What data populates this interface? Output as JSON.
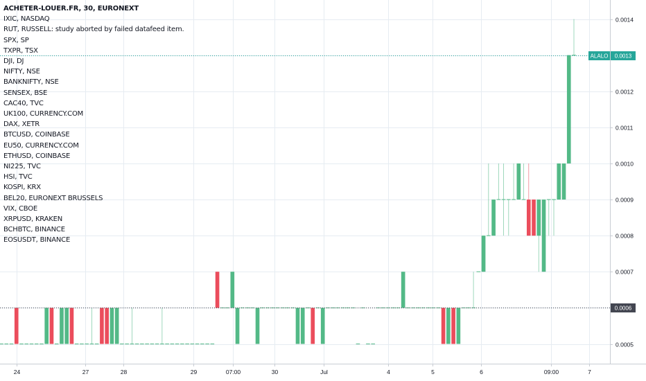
{
  "header": {
    "title": "ACHETER-LOUER.FR, 30, EURONEXT"
  },
  "comparison_symbols": [
    "IXIC, NASDAQ",
    "RUT, RUSSELL: study aborted by failed datafeed item.",
    "SPX, SP",
    "TXPR, TSX",
    "DJI, DJ",
    "NIFTY, NSE",
    "BANKNIFTY, NSE",
    "SENSEX, BSE",
    "CAC40, TVC",
    "UK100, CURRENCY.COM",
    "DAX, XETR",
    "BTCUSD, COINBASE",
    "EU50, CURRENCY.COM",
    "ETHUSD, COINBASE",
    "NI225, TVC",
    "HSI, TVC",
    "KOSPI, KRX",
    "BEL20, EURONEXT BRUSSELS",
    "VIX, CBOE",
    "XRPUSD, KRAKEN",
    "BCHBTC, BINANCE",
    "EOSUSDT, BINANCE"
  ],
  "price_badges": {
    "last": {
      "label": "ALALO",
      "value": "0.0013",
      "color": "#26a69a"
    },
    "marker": {
      "value": "0.0006",
      "color": "#434651"
    }
  },
  "colors": {
    "up": "#53b987",
    "down": "#eb4d5c",
    "grid": "#e6ecf2",
    "axis_text": "#131722"
  },
  "chart_data": {
    "type": "candlestick",
    "title": "ACHETER-LOUER.FR, 30, EURONEXT",
    "ylim": [
      0.00045,
      0.00145
    ],
    "y_ticks": [
      0.0005,
      0.0006,
      0.0007,
      0.0008,
      0.0009,
      0.001,
      0.0011,
      0.0012,
      0.0013,
      0.0014
    ],
    "y_tick_labels": [
      "0.0005",
      "0.0006",
      "0.0007",
      "0.0008",
      "0.0009",
      "0.0010",
      "0.0011",
      "0.0012",
      "0.0013",
      "0.0014"
    ],
    "x_ticks": [
      "24",
      "27",
      "28",
      "29",
      "07:00",
      "30",
      "Jul",
      "4",
      "5",
      "6",
      "09:00",
      "7"
    ],
    "reference_line": 0.0006,
    "last_price_line": 0.0013,
    "bar_interval": "30",
    "candles": [
      {
        "o": 0.0005,
        "h": 0.0005,
        "l": 0.0005,
        "c": 0.0005
      },
      {
        "o": 0.0005,
        "h": 0.0005,
        "l": 0.0005,
        "c": 0.0005
      },
      {
        "o": 0.0005,
        "h": 0.0005,
        "l": 0.0005,
        "c": 0.0005
      },
      {
        "o": 0.0006,
        "h": 0.0006,
        "l": 0.0005,
        "c": 0.0005
      },
      {
        "o": 0.0005,
        "h": 0.0005,
        "l": 0.0005,
        "c": 0.0005
      },
      {
        "o": 0.0005,
        "h": 0.0005,
        "l": 0.0005,
        "c": 0.0005
      },
      {
        "o": 0.0005,
        "h": 0.0005,
        "l": 0.0005,
        "c": 0.0005
      },
      {
        "o": 0.0005,
        "h": 0.0005,
        "l": 0.0005,
        "c": 0.0005
      },
      {
        "o": 0.0005,
        "h": 0.0005,
        "l": 0.0005,
        "c": 0.0005
      },
      {
        "o": 0.0005,
        "h": 0.0006,
        "l": 0.0005,
        "c": 0.0006
      },
      {
        "o": 0.0006,
        "h": 0.0006,
        "l": 0.0005,
        "c": 0.0005
      },
      {
        "o": 0.0005,
        "h": 0.0005,
        "l": 0.0005,
        "c": 0.0005
      },
      {
        "o": 0.0005,
        "h": 0.0006,
        "l": 0.0005,
        "c": 0.0006
      },
      {
        "o": 0.0005,
        "h": 0.0006,
        "l": 0.0005,
        "c": 0.0006
      },
      {
        "o": 0.0006,
        "h": 0.0006,
        "l": 0.0005,
        "c": 0.0005
      },
      {
        "o": 0.0005,
        "h": 0.0005,
        "l": 0.0005,
        "c": 0.0005
      },
      {
        "o": 0.0005,
        "h": 0.0005,
        "l": 0.0005,
        "c": 0.0005
      },
      {
        "o": 0.0005,
        "h": 0.0005,
        "l": 0.0005,
        "c": 0.0005
      },
      {
        "o": 0.0005,
        "h": 0.0006,
        "l": 0.0005,
        "c": 0.0005
      },
      {
        "o": 0.0005,
        "h": 0.0005,
        "l": 0.0005,
        "c": 0.0005
      },
      {
        "o": 0.0006,
        "h": 0.0006,
        "l": 0.0005,
        "c": 0.0005
      },
      {
        "o": 0.0006,
        "h": 0.0006,
        "l": 0.0005,
        "c": 0.0005
      },
      {
        "o": 0.0005,
        "h": 0.0006,
        "l": 0.0005,
        "c": 0.0006
      },
      {
        "o": 0.0005,
        "h": 0.0006,
        "l": 0.0005,
        "c": 0.0006
      },
      {
        "o": 0.0005,
        "h": 0.0005,
        "l": 0.0005,
        "c": 0.0005
      },
      {
        "o": 0.0005,
        "h": 0.0005,
        "l": 0.0005,
        "c": 0.0005
      },
      {
        "o": 0.0005,
        "h": 0.0006,
        "l": 0.0005,
        "c": 0.0005
      },
      {
        "o": 0.0005,
        "h": 0.0005,
        "l": 0.0005,
        "c": 0.0005
      },
      {
        "o": 0.0005,
        "h": 0.0005,
        "l": 0.0005,
        "c": 0.0005
      },
      {
        "o": 0.0005,
        "h": 0.0005,
        "l": 0.0005,
        "c": 0.0005
      },
      {
        "o": 0.0005,
        "h": 0.0005,
        "l": 0.0005,
        "c": 0.0005
      },
      {
        "o": 0.0005,
        "h": 0.0005,
        "l": 0.0005,
        "c": 0.0005
      },
      {
        "o": 0.0005,
        "h": 0.0006,
        "l": 0.0005,
        "c": 0.0005
      },
      {
        "o": 0.0005,
        "h": 0.0005,
        "l": 0.0005,
        "c": 0.0005
      },
      {
        "o": 0.0005,
        "h": 0.0005,
        "l": 0.0005,
        "c": 0.0005
      },
      {
        "o": 0.0005,
        "h": 0.0005,
        "l": 0.0005,
        "c": 0.0005
      },
      {
        "o": 0.0005,
        "h": 0.0005,
        "l": 0.0005,
        "c": 0.0005
      },
      {
        "o": 0.0005,
        "h": 0.0005,
        "l": 0.0005,
        "c": 0.0005
      },
      {
        "o": 0.0005,
        "h": 0.0005,
        "l": 0.0005,
        "c": 0.0005
      },
      {
        "o": 0.0005,
        "h": 0.0005,
        "l": 0.0005,
        "c": 0.0005
      },
      {
        "o": 0.0005,
        "h": 0.0005,
        "l": 0.0005,
        "c": 0.0005
      },
      {
        "o": 0.0005,
        "h": 0.0005,
        "l": 0.0005,
        "c": 0.0005
      },
      {
        "o": 0.0005,
        "h": 0.0005,
        "l": 0.0005,
        "c": 0.0005
      },
      {
        "o": 0.0007,
        "h": 0.0007,
        "l": 0.0006,
        "c": 0.0006
      },
      {
        "o": 0.0006,
        "h": 0.0006,
        "l": 0.0006,
        "c": 0.0006
      },
      {
        "o": 0.0006,
        "h": 0.0006,
        "l": 0.0006,
        "c": 0.0006
      },
      {
        "o": 0.0006,
        "h": 0.0007,
        "l": 0.0006,
        "c": 0.0007
      },
      {
        "o": 0.0005,
        "h": 0.0006,
        "l": 0.0005,
        "c": 0.0006
      },
      {
        "o": 0.0006,
        "h": 0.0006,
        "l": 0.0006,
        "c": 0.0006
      },
      {
        "o": 0.0006,
        "h": 0.0006,
        "l": 0.0006,
        "c": 0.0006
      },
      {
        "o": 0.0006,
        "h": 0.0006,
        "l": 0.0006,
        "c": 0.0006
      },
      {
        "o": 0.0005,
        "h": 0.0006,
        "l": 0.0005,
        "c": 0.0006
      },
      {
        "o": 0.0006,
        "h": 0.0006,
        "l": 0.0006,
        "c": 0.0006
      },
      {
        "o": 0.0006,
        "h": 0.0006,
        "l": 0.0006,
        "c": 0.0006
      },
      {
        "o": 0.0006,
        "h": 0.0006,
        "l": 0.0006,
        "c": 0.0006
      },
      {
        "o": 0.0006,
        "h": 0.0006,
        "l": 0.0006,
        "c": 0.0006
      },
      {
        "o": 0.0006,
        "h": 0.0006,
        "l": 0.0006,
        "c": 0.0006
      },
      {
        "o": 0.0006,
        "h": 0.0006,
        "l": 0.0006,
        "c": 0.0006
      },
      {
        "o": 0.0006,
        "h": 0.0006,
        "l": 0.0006,
        "c": 0.0006
      },
      {
        "o": 0.0005,
        "h": 0.0006,
        "l": 0.0005,
        "c": 0.0006
      },
      {
        "o": 0.0005,
        "h": 0.0006,
        "l": 0.0005,
        "c": 0.0006
      },
      {
        "o": 0.0006,
        "h": 0.0006,
        "l": 0.0006,
        "c": 0.0006
      },
      {
        "o": 0.0006,
        "h": 0.0006,
        "l": 0.0005,
        "c": 0.0005
      },
      {
        "o": 0.0006,
        "h": 0.0006,
        "l": 0.0006,
        "c": 0.0006
      },
      {
        "o": 0.0005,
        "h": 0.0006,
        "l": 0.0005,
        "c": 0.0006
      },
      {
        "o": 0.0006,
        "h": 0.0006,
        "l": 0.0006,
        "c": 0.0006
      },
      {
        "o": 0.0006,
        "h": 0.0006,
        "l": 0.0006,
        "c": 0.0006
      },
      {
        "o": 0.0006,
        "h": 0.0006,
        "l": 0.0006,
        "c": 0.0006
      },
      {
        "o": 0.0006,
        "h": 0.0006,
        "l": 0.0006,
        "c": 0.0006
      },
      {
        "o": 0.0006,
        "h": 0.0006,
        "l": 0.0006,
        "c": 0.0006
      },
      {
        "o": 0.0006,
        "h": 0.0006,
        "l": 0.0006,
        "c": 0.0006
      },
      {
        "o": 0.0005,
        "h": 0.0005,
        "l": 0.0005,
        "c": 0.0005
      },
      {
        "o": 0.0006,
        "h": 0.0006,
        "l": 0.0006,
        "c": 0.0006
      },
      {
        "o": 0.0005,
        "h": 0.0005,
        "l": 0.0005,
        "c": 0.0005
      },
      {
        "o": 0.0005,
        "h": 0.0005,
        "l": 0.0005,
        "c": 0.0005
      },
      {
        "o": 0.0006,
        "h": 0.0006,
        "l": 0.0006,
        "c": 0.0006
      },
      {
        "o": 0.0006,
        "h": 0.0006,
        "l": 0.0006,
        "c": 0.0006
      },
      {
        "o": 0.0006,
        "h": 0.0006,
        "l": 0.0006,
        "c": 0.0006
      },
      {
        "o": 0.0006,
        "h": 0.0006,
        "l": 0.0006,
        "c": 0.0006
      },
      {
        "o": 0.0006,
        "h": 0.0006,
        "l": 0.0006,
        "c": 0.0006
      },
      {
        "o": 0.0006,
        "h": 0.0007,
        "l": 0.0006,
        "c": 0.0007
      },
      {
        "o": 0.0006,
        "h": 0.0006,
        "l": 0.0006,
        "c": 0.0006
      },
      {
        "o": 0.0006,
        "h": 0.0006,
        "l": 0.0006,
        "c": 0.0006
      },
      {
        "o": 0.0006,
        "h": 0.0006,
        "l": 0.0006,
        "c": 0.0006
      },
      {
        "o": 0.0006,
        "h": 0.0006,
        "l": 0.0006,
        "c": 0.0006
      },
      {
        "o": 0.0006,
        "h": 0.0006,
        "l": 0.0006,
        "c": 0.0006
      },
      {
        "o": 0.0006,
        "h": 0.0006,
        "l": 0.0006,
        "c": 0.0006
      },
      {
        "o": 0.0006,
        "h": 0.0006,
        "l": 0.0006,
        "c": 0.0006
      },
      {
        "o": 0.0006,
        "h": 0.0006,
        "l": 0.0005,
        "c": 0.0005
      },
      {
        "o": 0.0005,
        "h": 0.0006,
        "l": 0.0005,
        "c": 0.0006
      },
      {
        "o": 0.0006,
        "h": 0.0006,
        "l": 0.0005,
        "c": 0.0005
      },
      {
        "o": 0.0005,
        "h": 0.0006,
        "l": 0.0005,
        "c": 0.0006
      },
      {
        "o": 0.0006,
        "h": 0.0006,
        "l": 0.0006,
        "c": 0.0006
      },
      {
        "o": 0.0006,
        "h": 0.0006,
        "l": 0.0006,
        "c": 0.0006
      },
      {
        "o": 0.0006,
        "h": 0.0007,
        "l": 0.0006,
        "c": 0.0006
      },
      {
        "o": 0.0007,
        "h": 0.0007,
        "l": 0.0007,
        "c": 0.0007
      },
      {
        "o": 0.0007,
        "h": 0.0008,
        "l": 0.0007,
        "c": 0.0008
      },
      {
        "o": 0.0008,
        "h": 0.001,
        "l": 0.0008,
        "c": 0.0008
      },
      {
        "o": 0.0008,
        "h": 0.0009,
        "l": 0.0008,
        "c": 0.0009
      },
      {
        "o": 0.0009,
        "h": 0.001,
        "l": 0.0009,
        "c": 0.0009
      },
      {
        "o": 0.0009,
        "h": 0.001,
        "l": 0.0008,
        "c": 0.0009
      },
      {
        "o": 0.0009,
        "h": 0.0009,
        "l": 0.0008,
        "c": 0.0009
      },
      {
        "o": 0.0009,
        "h": 0.001,
        "l": 0.0009,
        "c": 0.0009
      },
      {
        "o": 0.0009,
        "h": 0.001,
        "l": 0.0009,
        "c": 0.001
      },
      {
        "o": 0.0009,
        "h": 0.001,
        "l": 0.0009,
        "c": 0.0009
      },
      {
        "o": 0.0009,
        "h": 0.001,
        "l": 0.0008,
        "c": 0.0008
      },
      {
        "o": 0.0009,
        "h": 0.0009,
        "l": 0.0008,
        "c": 0.0008
      },
      {
        "o": 0.0008,
        "h": 0.0009,
        "l": 0.0007,
        "c": 0.0009
      },
      {
        "o": 0.0007,
        "h": 0.0009,
        "l": 0.0007,
        "c": 0.0009
      },
      {
        "o": 0.0009,
        "h": 0.0009,
        "l": 0.0008,
        "c": 0.0009
      },
      {
        "o": 0.0009,
        "h": 0.0009,
        "l": 0.0008,
        "c": 0.0009
      },
      {
        "o": 0.0009,
        "h": 0.001,
        "l": 0.0009,
        "c": 0.001
      },
      {
        "o": 0.0009,
        "h": 0.001,
        "l": 0.0009,
        "c": 0.001
      },
      {
        "o": 0.001,
        "h": 0.0013,
        "l": 0.001,
        "c": 0.0013
      },
      {
        "o": 0.0013,
        "h": 0.0014,
        "l": 0.0013,
        "c": 0.0013
      }
    ]
  }
}
